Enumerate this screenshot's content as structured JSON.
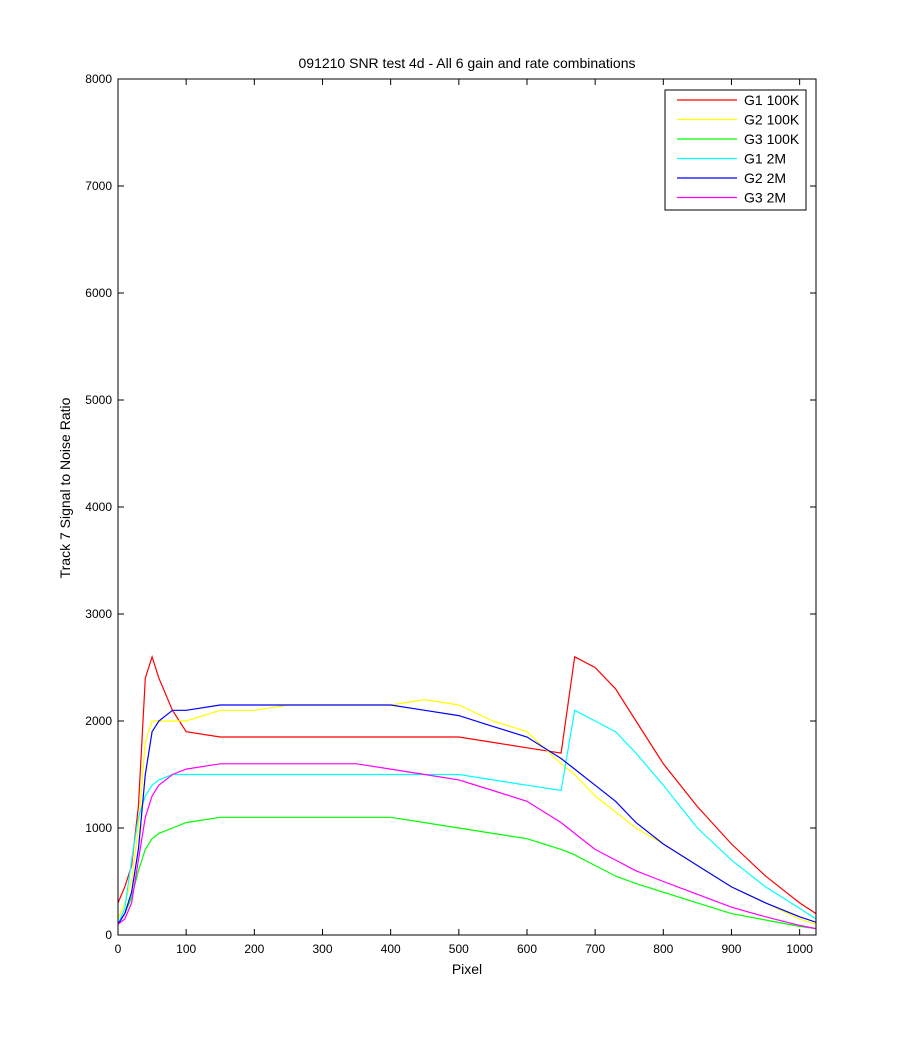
{
  "chart_data": {
    "type": "line",
    "title": "091210  SNR test 4d - All 6 gain and rate combinations",
    "xlabel": "Pixel",
    "ylabel": "Track 7 Signal to Noise Ratio",
    "xlim": [
      0,
      1024
    ],
    "ylim": [
      0,
      8000
    ],
    "xticks": [
      0,
      100,
      200,
      300,
      400,
      500,
      600,
      700,
      800,
      900,
      1000
    ],
    "yticks": [
      0,
      1000,
      2000,
      3000,
      4000,
      5000,
      6000,
      7000,
      8000
    ],
    "grid": false,
    "legend_position": "top-right",
    "series": [
      {
        "name": "G1 100K",
        "color": "#ff0000",
        "x": [
          0,
          10,
          20,
          30,
          40,
          50,
          60,
          80,
          100,
          150,
          200,
          250,
          300,
          350,
          400,
          450,
          500,
          550,
          600,
          650,
          670,
          700,
          730,
          760,
          800,
          850,
          900,
          950,
          1000,
          1024
        ],
        "y": [
          300,
          450,
          650,
          1200,
          2400,
          2600,
          2400,
          2100,
          1900,
          1850,
          1850,
          1850,
          1850,
          1850,
          1850,
          1850,
          1850,
          1800,
          1750,
          1700,
          2600,
          2500,
          2300,
          2000,
          1600,
          1200,
          850,
          550,
          300,
          200
        ]
      },
      {
        "name": "G2 100K",
        "color": "#ffff00",
        "x": [
          0,
          10,
          20,
          30,
          40,
          50,
          60,
          80,
          100,
          150,
          200,
          250,
          300,
          350,
          400,
          450,
          500,
          550,
          600,
          650,
          670,
          700,
          730,
          760,
          800,
          850,
          900,
          950,
          1000,
          1024
        ],
        "y": [
          150,
          300,
          500,
          1000,
          1800,
          2000,
          2000,
          2000,
          2000,
          2100,
          2100,
          2150,
          2150,
          2150,
          2150,
          2200,
          2150,
          2000,
          1900,
          1600,
          1500,
          1300,
          1150,
          1000,
          850,
          650,
          450,
          300,
          150,
          100
        ]
      },
      {
        "name": "G3 100K",
        "color": "#00ff00",
        "x": [
          0,
          10,
          20,
          30,
          40,
          50,
          60,
          80,
          100,
          150,
          200,
          250,
          300,
          350,
          400,
          450,
          500,
          550,
          600,
          650,
          670,
          700,
          730,
          760,
          800,
          850,
          900,
          950,
          1000,
          1024
        ],
        "y": [
          100,
          200,
          350,
          600,
          800,
          900,
          950,
          1000,
          1050,
          1100,
          1100,
          1100,
          1100,
          1100,
          1100,
          1050,
          1000,
          950,
          900,
          800,
          750,
          650,
          550,
          480,
          400,
          300,
          200,
          140,
          80,
          60
        ]
      },
      {
        "name": "G1 2M",
        "color": "#00ffff",
        "x": [
          0,
          10,
          20,
          30,
          40,
          50,
          60,
          80,
          100,
          150,
          200,
          250,
          300,
          350,
          400,
          450,
          500,
          550,
          600,
          650,
          670,
          700,
          730,
          760,
          800,
          850,
          900,
          950,
          1000,
          1024
        ],
        "y": [
          100,
          250,
          700,
          1100,
          1300,
          1400,
          1450,
          1500,
          1500,
          1500,
          1500,
          1500,
          1500,
          1500,
          1500,
          1500,
          1500,
          1450,
          1400,
          1350,
          2100,
          2000,
          1900,
          1700,
          1400,
          1000,
          700,
          450,
          250,
          150
        ]
      },
      {
        "name": "G2 2M",
        "color": "#0000ff",
        "x": [
          0,
          10,
          20,
          30,
          40,
          50,
          60,
          80,
          100,
          150,
          200,
          250,
          300,
          350,
          400,
          450,
          500,
          550,
          600,
          650,
          670,
          700,
          730,
          760,
          800,
          850,
          900,
          950,
          1000,
          1024
        ],
        "y": [
          100,
          200,
          400,
          800,
          1500,
          1900,
          2000,
          2100,
          2100,
          2150,
          2150,
          2150,
          2150,
          2150,
          2150,
          2100,
          2050,
          1950,
          1850,
          1650,
          1550,
          1400,
          1250,
          1050,
          850,
          650,
          450,
          300,
          170,
          120
        ]
      },
      {
        "name": "G3 2M",
        "color": "#ff00ff",
        "x": [
          0,
          10,
          20,
          30,
          40,
          50,
          60,
          80,
          100,
          150,
          200,
          250,
          300,
          350,
          400,
          450,
          500,
          550,
          600,
          650,
          670,
          700,
          730,
          760,
          800,
          850,
          900,
          950,
          1000,
          1024
        ],
        "y": [
          100,
          150,
          300,
          700,
          1100,
          1300,
          1400,
          1500,
          1550,
          1600,
          1600,
          1600,
          1600,
          1600,
          1550,
          1500,
          1450,
          1350,
          1250,
          1050,
          950,
          800,
          700,
          600,
          500,
          380,
          260,
          170,
          90,
          60
        ]
      }
    ]
  }
}
